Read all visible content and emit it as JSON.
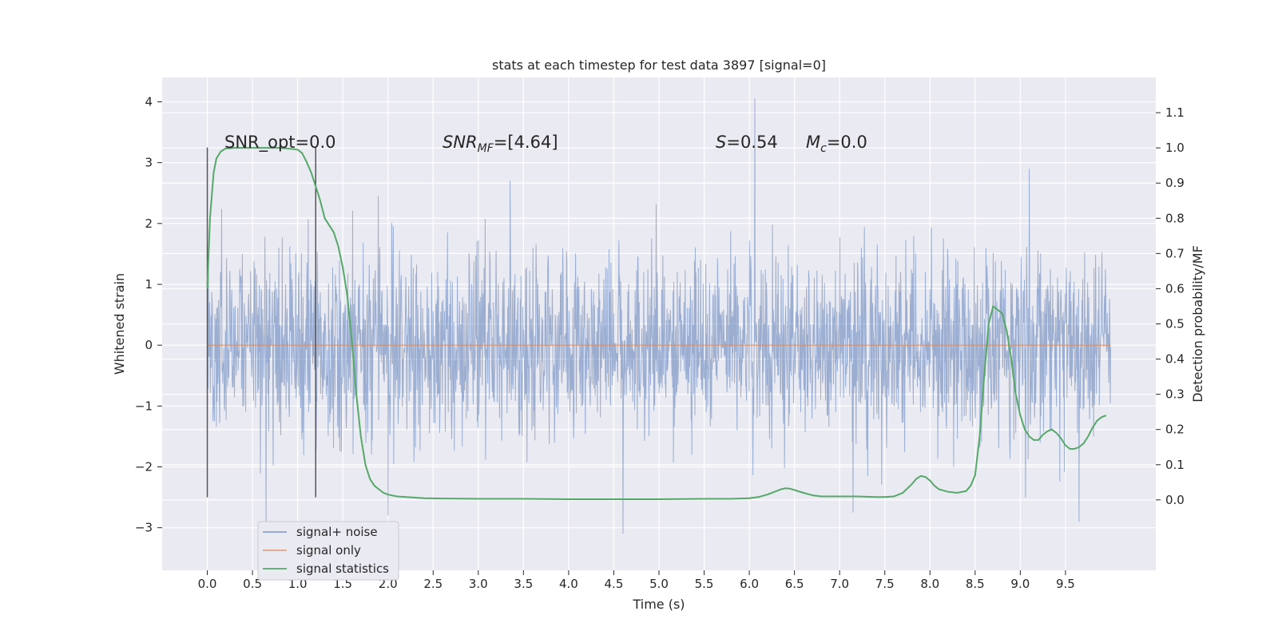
{
  "chart_data": {
    "type": "line",
    "title": "stats at each timestep for test data 3897 [signal=0]",
    "xlabel": "Time (s)",
    "ylabel": "Whitened strain",
    "ylabel_right": "Detection probability/MF",
    "xlim": [
      -0.5,
      10.5
    ],
    "ylim": [
      -3.7,
      4.4
    ],
    "ylim_right": [
      -0.2,
      1.2
    ],
    "x_ticks": [
      0.0,
      0.5,
      1.0,
      1.5,
      2.0,
      2.5,
      3.0,
      3.5,
      4.0,
      4.5,
      5.0,
      5.5,
      6.0,
      6.5,
      7.0,
      7.5,
      8.0,
      8.5,
      9.0,
      9.5
    ],
    "x_tick_labels": [
      "0.0",
      "0.5",
      "1.0",
      "1.5",
      "2.0",
      "2.5",
      "3.0",
      "3.5",
      "4.0",
      "4.5",
      "5.0",
      "5.5",
      "6.0",
      "6.5",
      "7.0",
      "7.5",
      "8.0",
      "8.5",
      "9.0",
      "9.5"
    ],
    "y_ticks": [
      -3,
      -2,
      -1,
      0,
      1,
      2,
      3,
      4
    ],
    "y_tick_labels": [
      "−3",
      "−2",
      "−1",
      "0",
      "1",
      "2",
      "3",
      "4"
    ],
    "y_right_ticks": [
      0.0,
      0.1,
      0.2,
      0.3,
      0.4,
      0.5,
      0.6,
      0.7,
      0.8,
      0.9,
      1.0,
      1.1
    ],
    "y_right_tick_labels": [
      "0.0",
      "0.1",
      "0.2",
      "0.3",
      "0.4",
      "0.5",
      "0.6",
      "0.7",
      "0.8",
      "0.9",
      "1.0",
      "1.1"
    ],
    "grid": true,
    "legend_position": "lower-left",
    "legend": [
      "signal+ noise",
      "signal only",
      "signal statistics"
    ],
    "colors": {
      "signal_noise": "#4c72b0",
      "signal_only": "#dd8452",
      "signal_statistics": "#55a868",
      "markers": "#555555",
      "background": "#eaeaf2",
      "grid": "#ffffff"
    },
    "annotations": {
      "snr_opt": "SNR_opt=0.0",
      "snr_mf_prefix": "SNR",
      "snr_mf_sub": "MF",
      "snr_mf_suffix": "=[4.64]",
      "s_var": "S",
      "s_value": "=0.54",
      "mc_var": "M",
      "mc_sub": "c",
      "mc_value": "=0.0"
    },
    "vertical_markers_x": [
      0.0,
      1.2
    ],
    "vertical_markers_y": [
      -2.5,
      3.25
    ],
    "series": [
      {
        "name": "signal+ noise",
        "description_only": false,
        "x_range": [
          0.0,
          10.0
        ],
        "typical_min": -1.5,
        "typical_max": 1.5,
        "spikes": [
          [
            6.06,
            4.05
          ],
          [
            0.65,
            -3.05
          ],
          [
            4.6,
            -3.1
          ],
          [
            9.65,
            -2.9
          ],
          [
            9.1,
            2.9
          ],
          [
            3.35,
            2.7
          ],
          [
            2.0,
            -2.8
          ],
          [
            7.15,
            -2.75
          ]
        ]
      },
      {
        "name": "signal only",
        "x": [
          0.0,
          10.0
        ],
        "values": [
          0.0,
          0.0
        ]
      },
      {
        "name": "signal statistics",
        "axis": "right",
        "x": [
          0.0,
          0.03,
          0.07,
          0.1,
          0.15,
          0.2,
          0.3,
          0.4,
          0.5,
          0.6,
          0.7,
          0.8,
          0.9,
          1.0,
          1.05,
          1.1,
          1.15,
          1.2,
          1.25,
          1.3,
          1.4,
          1.45,
          1.5,
          1.55,
          1.6,
          1.65,
          1.7,
          1.75,
          1.8,
          1.85,
          1.9,
          1.95,
          2.0,
          2.1,
          2.2,
          2.4,
          2.6,
          3.0,
          3.5,
          4.0,
          4.5,
          5.0,
          5.5,
          5.8,
          6.0,
          6.1,
          6.2,
          6.3,
          6.35,
          6.4,
          6.45,
          6.5,
          6.6,
          6.7,
          6.8,
          6.9,
          7.0,
          7.2,
          7.4,
          7.5,
          7.6,
          7.7,
          7.8,
          7.85,
          7.9,
          7.95,
          8.0,
          8.05,
          8.1,
          8.2,
          8.3,
          8.4,
          8.45,
          8.5,
          8.55,
          8.6,
          8.65,
          8.7,
          8.75,
          8.8,
          8.85,
          8.9,
          8.95,
          9.0,
          9.05,
          9.1,
          9.15,
          9.2,
          9.25,
          9.3,
          9.35,
          9.4,
          9.45,
          9.5,
          9.55,
          9.6,
          9.65,
          9.7,
          9.75,
          9.8,
          9.85,
          9.9,
          9.95
        ],
        "values": [
          0.6,
          0.8,
          0.93,
          0.97,
          0.99,
          0.998,
          1.0,
          1.0,
          1.0,
          1.0,
          1.0,
          1.0,
          0.998,
          0.995,
          0.985,
          0.96,
          0.93,
          0.89,
          0.85,
          0.8,
          0.76,
          0.72,
          0.66,
          0.58,
          0.45,
          0.3,
          0.18,
          0.1,
          0.06,
          0.04,
          0.03,
          0.02,
          0.015,
          0.01,
          0.008,
          0.005,
          0.004,
          0.003,
          0.003,
          0.002,
          0.002,
          0.002,
          0.003,
          0.003,
          0.005,
          0.008,
          0.015,
          0.025,
          0.03,
          0.033,
          0.032,
          0.028,
          0.02,
          0.013,
          0.01,
          0.01,
          0.01,
          0.01,
          0.008,
          0.008,
          0.01,
          0.02,
          0.045,
          0.06,
          0.068,
          0.065,
          0.055,
          0.04,
          0.03,
          0.023,
          0.02,
          0.025,
          0.04,
          0.07,
          0.18,
          0.35,
          0.5,
          0.55,
          0.54,
          0.53,
          0.48,
          0.4,
          0.3,
          0.24,
          0.2,
          0.18,
          0.17,
          0.17,
          0.185,
          0.195,
          0.2,
          0.19,
          0.175,
          0.155,
          0.145,
          0.145,
          0.15,
          0.16,
          0.18,
          0.205,
          0.225,
          0.235,
          0.24
        ]
      }
    ]
  }
}
